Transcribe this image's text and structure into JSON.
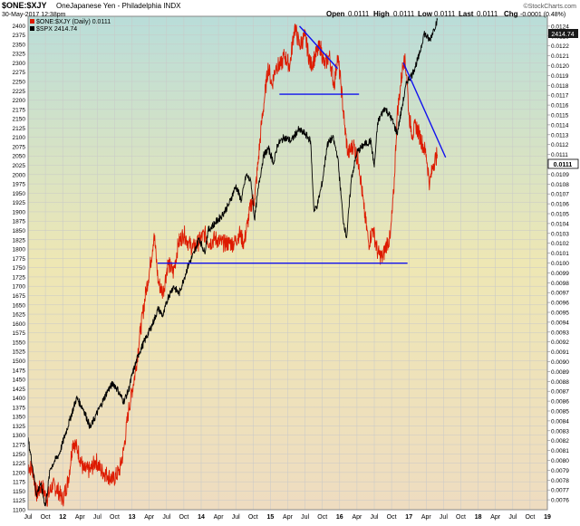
{
  "header": {
    "symbol": "$ONE:$XJY",
    "description": "OneJapanese Yen - Philadelphia INDX",
    "datetime": "30-May-2017 12:38pm",
    "open_label": "Open",
    "open_value": "0.0111",
    "high_label": "High",
    "high_value": "0.0111",
    "low_label": "Low",
    "low_value": "0.0111",
    "last_label": "Last",
    "last_value": "0.0111",
    "chg_label": "Chg",
    "chg_value": "-0.0001 (0.48%)",
    "watermark": "©StockCharts.com"
  },
  "legend": {
    "series1": "$ONE:$XJY (Daily) 0.0111",
    "series2": "$SPX 2414.74"
  },
  "badges": {
    "left": "2414.74",
    "right": "0.0111"
  },
  "colors": {
    "bg_top": "#b9ddd9",
    "bg_mid": "#eee7b4",
    "bg_bottom": "#eedcc0",
    "spx": "#000000",
    "yen": "#dd1a00",
    "trendline": "#1111ee",
    "grid": "#c8c8c8",
    "frame": "#888888",
    "right_badge_bg": "#ffffff"
  },
  "chart_data": {
    "type": "line",
    "title": "$ONE:$XJY OneJapanese Yen - Philadelphia INDX",
    "x_labels": [
      "Jul",
      "Oct",
      "12",
      "Apr",
      "Jul",
      "Oct",
      "13",
      "Apr",
      "Jul",
      "Oct",
      "14",
      "Apr",
      "Jul",
      "Oct",
      "15",
      "Apr",
      "Jul",
      "Oct",
      "16",
      "Apr",
      "Jul",
      "Oct",
      "17",
      "Apr",
      "Jul",
      "Oct",
      "18",
      "Apr",
      "Jul",
      "Oct",
      "19"
    ],
    "xlim": [
      2011.5,
      2019.0
    ],
    "y_left": {
      "label": "$SPX",
      "min": 1100,
      "max": 2425,
      "ticks": [
        1100,
        1125,
        1150,
        1175,
        1200,
        1225,
        1250,
        1275,
        1300,
        1325,
        1350,
        1375,
        1400,
        1425,
        1450,
        1475,
        1500,
        1525,
        1550,
        1575,
        1600,
        1625,
        1650,
        1675,
        1700,
        1725,
        1750,
        1775,
        1800,
        1825,
        1850,
        1875,
        1900,
        1925,
        1950,
        1975,
        2000,
        2025,
        2050,
        2075,
        2100,
        2125,
        2150,
        2175,
        2200,
        2225,
        2250,
        2275,
        2300,
        2325,
        2350,
        2375,
        2400
      ]
    },
    "y_right": {
      "label": "$ONE:$XJY",
      "min": 0.0075,
      "max": 0.0125,
      "ticks": [
        "0.0076",
        "0.0077",
        "0.0078",
        "0.0079",
        "0.0080",
        "0.0081",
        "0.0082",
        "0.0083",
        "0.0084",
        "0.0085",
        "0.0086",
        "0.0087",
        "0.0088",
        "0.0089",
        "0.0090",
        "0.0091",
        "0.0092",
        "0.0093",
        "0.0094",
        "0.0095",
        "0.0096",
        "0.0097",
        "0.0098",
        "0.0099",
        "0.0100",
        "0.0101",
        "0.0102",
        "0.0103",
        "0.0104",
        "0.0105",
        "0.0106",
        "0.0107",
        "0.0108",
        "0.0109",
        "0.0110",
        "0.0111",
        "0.0112",
        "0.0113",
        "0.0114",
        "0.0115",
        "0.0116",
        "0.0117",
        "0.0118",
        "0.0119",
        "0.0120",
        "0.0121",
        "0.0122",
        "0.0123",
        "0.0124"
      ]
    },
    "grid": true,
    "series": [
      {
        "name": "$SPX",
        "color": "#000000",
        "points": [
          [
            2011.5,
            1290
          ],
          [
            2011.57,
            1210
          ],
          [
            2011.62,
            1140
          ],
          [
            2011.68,
            1170
          ],
          [
            2011.75,
            1110
          ],
          [
            2011.82,
            1210
          ],
          [
            2011.88,
            1230
          ],
          [
            2011.95,
            1250
          ],
          [
            2012.0,
            1280
          ],
          [
            2012.1,
            1340
          ],
          [
            2012.2,
            1400
          ],
          [
            2012.3,
            1370
          ],
          [
            2012.4,
            1320
          ],
          [
            2012.47,
            1350
          ],
          [
            2012.55,
            1380
          ],
          [
            2012.65,
            1420
          ],
          [
            2012.73,
            1440
          ],
          [
            2012.8,
            1420
          ],
          [
            2012.88,
            1390
          ],
          [
            2012.95,
            1420
          ],
          [
            2013.0,
            1460
          ],
          [
            2013.1,
            1520
          ],
          [
            2013.2,
            1560
          ],
          [
            2013.3,
            1600
          ],
          [
            2013.38,
            1640
          ],
          [
            2013.45,
            1620
          ],
          [
            2013.52,
            1670
          ],
          [
            2013.6,
            1700
          ],
          [
            2013.68,
            1680
          ],
          [
            2013.75,
            1720
          ],
          [
            2013.82,
            1760
          ],
          [
            2013.9,
            1790
          ],
          [
            2013.97,
            1830
          ],
          [
            2014.05,
            1790
          ],
          [
            2014.1,
            1850
          ],
          [
            2014.2,
            1870
          ],
          [
            2014.3,
            1890
          ],
          [
            2014.4,
            1920
          ],
          [
            2014.5,
            1970
          ],
          [
            2014.58,
            1930
          ],
          [
            2014.65,
            2000
          ],
          [
            2014.72,
            1980
          ],
          [
            2014.77,
            1880
          ],
          [
            2014.83,
            1970
          ],
          [
            2014.9,
            2050
          ],
          [
            2014.97,
            2070
          ],
          [
            2015.05,
            2030
          ],
          [
            2015.1,
            2080
          ],
          [
            2015.2,
            2100
          ],
          [
            2015.3,
            2090
          ],
          [
            2015.4,
            2120
          ],
          [
            2015.5,
            2110
          ],
          [
            2015.58,
            2090
          ],
          [
            2015.63,
            1900
          ],
          [
            2015.68,
            1920
          ],
          [
            2015.75,
            1980
          ],
          [
            2015.82,
            2080
          ],
          [
            2015.9,
            2100
          ],
          [
            2015.97,
            2050
          ],
          [
            2016.05,
            1880
          ],
          [
            2016.1,
            1830
          ],
          [
            2016.17,
            1990
          ],
          [
            2016.25,
            2060
          ],
          [
            2016.35,
            2080
          ],
          [
            2016.45,
            2090
          ],
          [
            2016.5,
            2020
          ],
          [
            2016.55,
            2140
          ],
          [
            2016.65,
            2180
          ],
          [
            2016.75,
            2150
          ],
          [
            2016.83,
            2110
          ],
          [
            2016.9,
            2180
          ],
          [
            2016.97,
            2250
          ],
          [
            2017.05,
            2270
          ],
          [
            2017.15,
            2320
          ],
          [
            2017.22,
            2380
          ],
          [
            2017.3,
            2360
          ],
          [
            2017.36,
            2390
          ],
          [
            2017.41,
            2414.74
          ]
        ]
      },
      {
        "name": "$ONE:$XJY",
        "color": "#dd1a00",
        "points": [
          [
            2011.5,
            0.00795
          ],
          [
            2011.57,
            0.0079
          ],
          [
            2011.62,
            0.00765
          ],
          [
            2011.7,
            0.00775
          ],
          [
            2011.77,
            0.0076
          ],
          [
            2011.85,
            0.00775
          ],
          [
            2011.93,
            0.0077
          ],
          [
            2012.0,
            0.0076
          ],
          [
            2012.08,
            0.0078
          ],
          [
            2012.15,
            0.0082
          ],
          [
            2012.22,
            0.0081
          ],
          [
            2012.3,
            0.0079
          ],
          [
            2012.4,
            0.0079
          ],
          [
            2012.48,
            0.008
          ],
          [
            2012.55,
            0.0079
          ],
          [
            2012.65,
            0.00785
          ],
          [
            2012.73,
            0.0078
          ],
          [
            2012.82,
            0.0079
          ],
          [
            2012.88,
            0.0081
          ],
          [
            2012.95,
            0.0085
          ],
          [
            2013.05,
            0.0089
          ],
          [
            2013.12,
            0.0093
          ],
          [
            2013.2,
            0.0097
          ],
          [
            2013.27,
            0.01
          ],
          [
            2013.32,
            0.0103
          ],
          [
            2013.38,
            0.0098
          ],
          [
            2013.45,
            0.0097
          ],
          [
            2013.52,
            0.01
          ],
          [
            2013.6,
            0.0099
          ],
          [
            2013.67,
            0.0102
          ],
          [
            2013.75,
            0.0103
          ],
          [
            2013.82,
            0.0102
          ],
          [
            2013.88,
            0.01015
          ],
          [
            2013.95,
            0.0102
          ],
          [
            2014.05,
            0.0103
          ],
          [
            2014.12,
            0.0102
          ],
          [
            2014.2,
            0.01025
          ],
          [
            2014.3,
            0.0102
          ],
          [
            2014.4,
            0.0102
          ],
          [
            2014.48,
            0.0102
          ],
          [
            2014.55,
            0.0103
          ],
          [
            2014.62,
            0.0102
          ],
          [
            2014.67,
            0.0104
          ],
          [
            2014.72,
            0.0106
          ],
          [
            2014.77,
            0.01065
          ],
          [
            2014.82,
            0.011
          ],
          [
            2014.87,
            0.0114
          ],
          [
            2014.92,
            0.0117
          ],
          [
            2014.97,
            0.012
          ],
          [
            2015.02,
            0.0118
          ],
          [
            2015.08,
            0.012
          ],
          [
            2015.15,
            0.012
          ],
          [
            2015.2,
            0.0121
          ],
          [
            2015.28,
            0.012
          ],
          [
            2015.35,
            0.0124
          ],
          [
            2015.42,
            0.0122
          ],
          [
            2015.5,
            0.0123
          ],
          [
            2015.58,
            0.012
          ],
          [
            2015.65,
            0.0121
          ],
          [
            2015.72,
            0.0122
          ],
          [
            2015.78,
            0.012
          ],
          [
            2015.85,
            0.0121
          ],
          [
            2015.92,
            0.0118
          ],
          [
            2015.97,
            0.0121
          ],
          [
            2016.02,
            0.0118
          ],
          [
            2016.07,
            0.0114
          ],
          [
            2016.12,
            0.0111
          ],
          [
            2016.2,
            0.0112
          ],
          [
            2016.28,
            0.011
          ],
          [
            2016.35,
            0.01055
          ],
          [
            2016.42,
            0.0102
          ],
          [
            2016.48,
            0.01035
          ],
          [
            2016.55,
            0.0101
          ],
          [
            2016.62,
            0.01005
          ],
          [
            2016.68,
            0.0102
          ],
          [
            2016.73,
            0.01025
          ],
          [
            2016.78,
            0.0107
          ],
          [
            2016.83,
            0.0115
          ],
          [
            2016.88,
            0.0118
          ],
          [
            2016.93,
            0.0121
          ],
          [
            2016.97,
            0.0119
          ],
          [
            2017.0,
            0.0115
          ],
          [
            2017.05,
            0.0113
          ],
          [
            2017.1,
            0.0114
          ],
          [
            2017.15,
            0.0113
          ],
          [
            2017.2,
            0.0112
          ],
          [
            2017.25,
            0.0111
          ],
          [
            2017.3,
            0.0108
          ],
          [
            2017.35,
            0.011
          ],
          [
            2017.41,
            0.0111
          ]
        ]
      }
    ],
    "trendlines": [
      {
        "axis": "right",
        "from": [
          2015.42,
          0.0124
        ],
        "to": [
          2015.97,
          0.01197
        ]
      },
      {
        "axis": "right",
        "from": [
          2015.13,
          0.01171
        ],
        "to": [
          2016.28,
          0.01171
        ]
      },
      {
        "axis": "left",
        "from": [
          2013.37,
          1762
        ],
        "to": [
          2016.98,
          1762
        ]
      },
      {
        "axis": "right",
        "from": [
          2016.92,
          0.01203
        ],
        "to": [
          2017.53,
          0.01107
        ]
      }
    ]
  }
}
